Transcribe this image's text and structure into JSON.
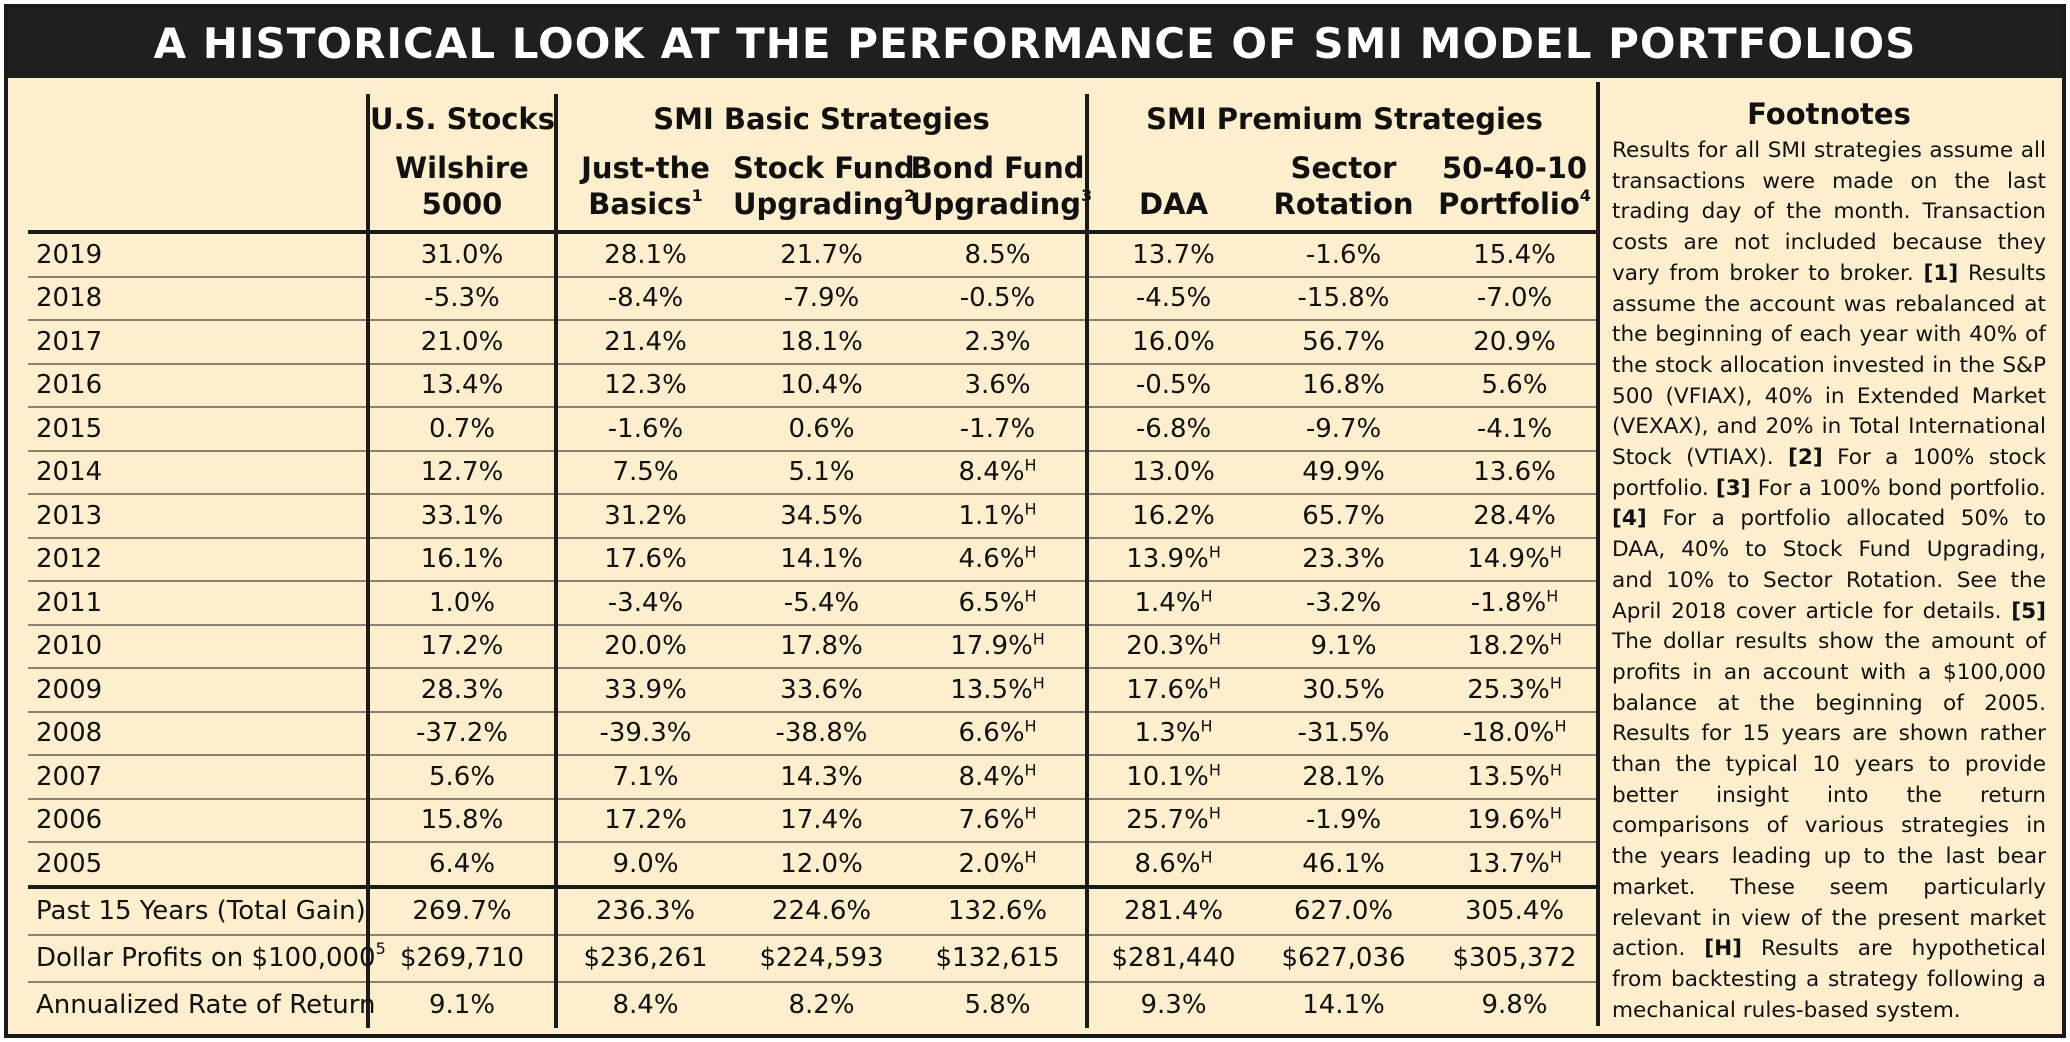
{
  "title": "A HISTORICAL LOOK AT THE PERFORMANCE OF SMI MODEL PORTFOLIOS",
  "groups": {
    "us": "U.S. Stocks",
    "basic": "SMI Basic Strategies",
    "premium": "SMI Premium Strategies"
  },
  "columns": [
    {
      "line1": "Wilshire",
      "line2": "5000",
      "sup": ""
    },
    {
      "line1": "Just-the",
      "line2": "Basics",
      "sup": "1"
    },
    {
      "line1": "Stock Fund",
      "line2": "Upgrading",
      "sup": "2"
    },
    {
      "line1": "Bond Fund",
      "line2": "Upgrading",
      "sup": "3"
    },
    {
      "line1": "",
      "line2": "DAA",
      "sup": ""
    },
    {
      "line1": "Sector",
      "line2": "Rotation",
      "sup": ""
    },
    {
      "line1": "50-40-10",
      "line2": "Portfolio",
      "sup": "4"
    }
  ],
  "rows": [
    {
      "label": "2019",
      "values": [
        "31.0%",
        "28.1%",
        "21.7%",
        "8.5%",
        "13.7%",
        "-1.6%",
        "15.4%"
      ],
      "hyp": [
        false,
        false,
        false,
        false,
        false,
        false,
        false
      ]
    },
    {
      "label": "2018",
      "values": [
        "-5.3%",
        "-8.4%",
        "-7.9%",
        "-0.5%",
        "-4.5%",
        "-15.8%",
        "-7.0%"
      ],
      "hyp": [
        false,
        false,
        false,
        false,
        false,
        false,
        false
      ]
    },
    {
      "label": "2017",
      "values": [
        "21.0%",
        "21.4%",
        "18.1%",
        "2.3%",
        "16.0%",
        "56.7%",
        "20.9%"
      ],
      "hyp": [
        false,
        false,
        false,
        false,
        false,
        false,
        false
      ]
    },
    {
      "label": "2016",
      "values": [
        "13.4%",
        "12.3%",
        "10.4%",
        "3.6%",
        "-0.5%",
        "16.8%",
        "5.6%"
      ],
      "hyp": [
        false,
        false,
        false,
        false,
        false,
        false,
        false
      ]
    },
    {
      "label": "2015",
      "values": [
        "0.7%",
        "-1.6%",
        "0.6%",
        "-1.7%",
        "-6.8%",
        "-9.7%",
        "-4.1%"
      ],
      "hyp": [
        false,
        false,
        false,
        false,
        false,
        false,
        false
      ]
    },
    {
      "label": "2014",
      "values": [
        "12.7%",
        "7.5%",
        "5.1%",
        "8.4%",
        "13.0%",
        "49.9%",
        "13.6%"
      ],
      "hyp": [
        false,
        false,
        false,
        true,
        false,
        false,
        false
      ]
    },
    {
      "label": "2013",
      "values": [
        "33.1%",
        "31.2%",
        "34.5%",
        "1.1%",
        "16.2%",
        "65.7%",
        "28.4%"
      ],
      "hyp": [
        false,
        false,
        false,
        true,
        false,
        false,
        false
      ]
    },
    {
      "label": "2012",
      "values": [
        "16.1%",
        "17.6%",
        "14.1%",
        "4.6%",
        "13.9%",
        "23.3%",
        "14.9%"
      ],
      "hyp": [
        false,
        false,
        false,
        true,
        true,
        false,
        true
      ]
    },
    {
      "label": "2011",
      "values": [
        "1.0%",
        "-3.4%",
        "-5.4%",
        "6.5%",
        "1.4%",
        "-3.2%",
        "-1.8%"
      ],
      "hyp": [
        false,
        false,
        false,
        true,
        true,
        false,
        true
      ]
    },
    {
      "label": "2010",
      "values": [
        "17.2%",
        "20.0%",
        "17.8%",
        "17.9%",
        "20.3%",
        "9.1%",
        "18.2%"
      ],
      "hyp": [
        false,
        false,
        false,
        true,
        true,
        false,
        true
      ]
    },
    {
      "label": "2009",
      "values": [
        "28.3%",
        "33.9%",
        "33.6%",
        "13.5%",
        "17.6%",
        "30.5%",
        "25.3%"
      ],
      "hyp": [
        false,
        false,
        false,
        true,
        true,
        false,
        true
      ]
    },
    {
      "label": "2008",
      "values": [
        "-37.2%",
        "-39.3%",
        "-38.8%",
        "6.6%",
        "1.3%",
        "-31.5%",
        "-18.0%"
      ],
      "hyp": [
        false,
        false,
        false,
        true,
        true,
        false,
        true
      ]
    },
    {
      "label": "2007",
      "values": [
        "5.6%",
        "7.1%",
        "14.3%",
        "8.4%",
        "10.1%",
        "28.1%",
        "13.5%"
      ],
      "hyp": [
        false,
        false,
        false,
        true,
        true,
        false,
        true
      ]
    },
    {
      "label": "2006",
      "values": [
        "15.8%",
        "17.2%",
        "17.4%",
        "7.6%",
        "25.7%",
        "-1.9%",
        "19.6%"
      ],
      "hyp": [
        false,
        false,
        false,
        true,
        true,
        false,
        true
      ]
    },
    {
      "label": "2005",
      "values": [
        "6.4%",
        "9.0%",
        "12.0%",
        "2.0%",
        "8.6%",
        "46.1%",
        "13.7%"
      ],
      "hyp": [
        false,
        false,
        false,
        true,
        true,
        false,
        true
      ]
    }
  ],
  "summary": [
    {
      "label": "Past 15 Years (Total Gain)",
      "sup": "",
      "values": [
        "269.7%",
        "236.3%",
        "224.6%",
        "132.6%",
        "281.4%",
        "627.0%",
        "305.4%"
      ]
    },
    {
      "label": "Dollar Profits on $100,000",
      "sup": "5",
      "values": [
        "$269,710",
        "$236,261",
        "$224,593",
        "$132,615",
        "$281,440",
        "$627,036",
        "$305,372"
      ]
    },
    {
      "label": "Annualized Rate of Return",
      "sup": "",
      "values": [
        "9.1%",
        "8.4%",
        "8.2%",
        "5.8%",
        "9.3%",
        "14.1%",
        "9.8%"
      ]
    }
  ],
  "hyp_marker": "H",
  "footnotes": {
    "title": "Footnotes",
    "intro": "Results for all SMI strategies assume all transactions were made on the last trading day of the month. Transaction costs are not included because they vary from broker to broker.",
    "n1_marker": "[1]",
    "n1": "Results assume the account was rebalanced at the beginning of each year with 40% of the stock allocation invested in the S&P 500 (VFIAX), 40% in Extended Market (VEXAX), and 20% in Total International Stock (VTIAX).",
    "n2_marker": "[2]",
    "n2": "For a 100% stock portfolio.",
    "n3_marker": "[3]",
    "n3": "For a 100% bond portfolio.",
    "n4_marker": "[4]",
    "n4": "For a portfolio allocated 50% to DAA, 40% to Stock Fund Upgrading, and 10% to Sector Rotation. See the April 2018 cover article for details.",
    "n5_marker": "[5]",
    "n5": "The dollar results show the amount of profits in an account with a $100,000 balance at the beginning of 2005. Results for 15 years are shown rather than the typical 10 years to provide better insight into the return comparisons of various strategies in the years leading up to the last bear market. These seem particularly relevant in view of the present market action.",
    "nh_marker": "[H]",
    "nh": "Results are hypothetical from backtesting a strategy following a mechanical rules-based system."
  }
}
